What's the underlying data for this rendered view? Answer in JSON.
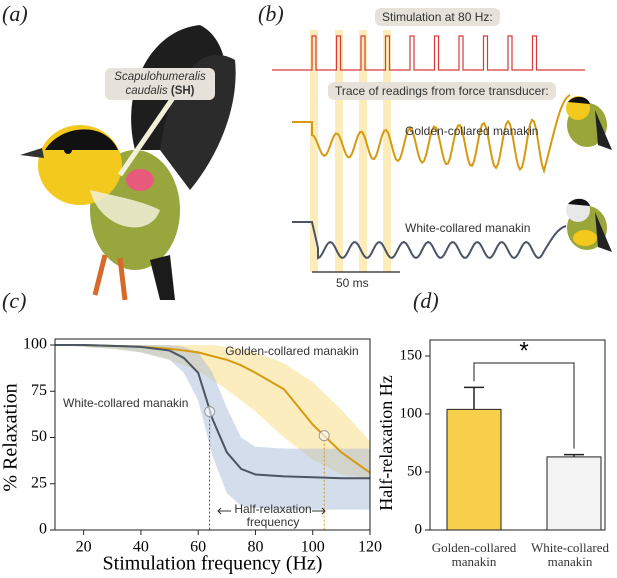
{
  "panels": {
    "a": {
      "label": "(a)",
      "muscle_name": "Scapulohumeralis",
      "muscle_name_2": "caudalis",
      "muscle_abbr": "(SH)"
    },
    "b": {
      "label": "(b)",
      "stimulation": "Stimulation at 80 Hz:",
      "trace": "Trace of readings from force transducer:",
      "golden": "Golden-collared manakin",
      "white": "White-collared manakin",
      "scale": "50 ms"
    }
  },
  "chart_data": [
    {
      "type": "line",
      "panel": "(c)",
      "xlabel": "Stimulation frequency (Hz)",
      "ylabel": "% Relaxation",
      "x": [
        10,
        20,
        30,
        40,
        50,
        55,
        60,
        65,
        70,
        75,
        80,
        90,
        100,
        110,
        120
      ],
      "xlim": [
        10,
        120
      ],
      "xticks": [
        20,
        40,
        60,
        80,
        100,
        120
      ],
      "ylim": [
        0,
        100
      ],
      "yticks": [
        0,
        25,
        50,
        75,
        100
      ],
      "series": [
        {
          "name": "Golden-collared manakin",
          "color": "#d69a12",
          "band_color": "#f7dc7c",
          "values": [
            100,
            100,
            99.5,
            99,
            98,
            97,
            96,
            94,
            92,
            89,
            85,
            76,
            57,
            42,
            31
          ],
          "upper": [
            100,
            100,
            100,
            100,
            100,
            100,
            100,
            100,
            99,
            98,
            96,
            90,
            80,
            65,
            48
          ],
          "lower": [
            100,
            99,
            98,
            96,
            92,
            89,
            86,
            81,
            76,
            70,
            64,
            50,
            38,
            30,
            28
          ],
          "half_x": 104,
          "half_y": 51
        },
        {
          "name": "White-collared manakin",
          "color": "#4b5563",
          "band_color": "#a9bcd9",
          "values": [
            100,
            100,
            99.5,
            99,
            97,
            93,
            85,
            60,
            42,
            33,
            30,
            29,
            28.5,
            28,
            28
          ],
          "upper": [
            100,
            100,
            100,
            100,
            100,
            99,
            96,
            85,
            66,
            50,
            45,
            44,
            44,
            44,
            44
          ],
          "lower": [
            100,
            99,
            98,
            96,
            92,
            85,
            70,
            40,
            20,
            13,
            12,
            11,
            11,
            11,
            11
          ],
          "half_x": 64,
          "half_y": 64
        }
      ],
      "annotation": "Half-relaxation frequency"
    },
    {
      "type": "bar",
      "panel": "(d)",
      "ylabel": "Half-relaxation Hz",
      "categories": [
        "Golden-collared manakin",
        "White-collared manakin"
      ],
      "values": [
        104,
        63
      ],
      "errors": [
        19,
        2
      ],
      "colors": [
        "#f7cf4a",
        "#f3f3f3"
      ],
      "ylim": [
        0,
        150
      ],
      "yticks": [
        0,
        50,
        100,
        150
      ],
      "significance": "*"
    }
  ]
}
